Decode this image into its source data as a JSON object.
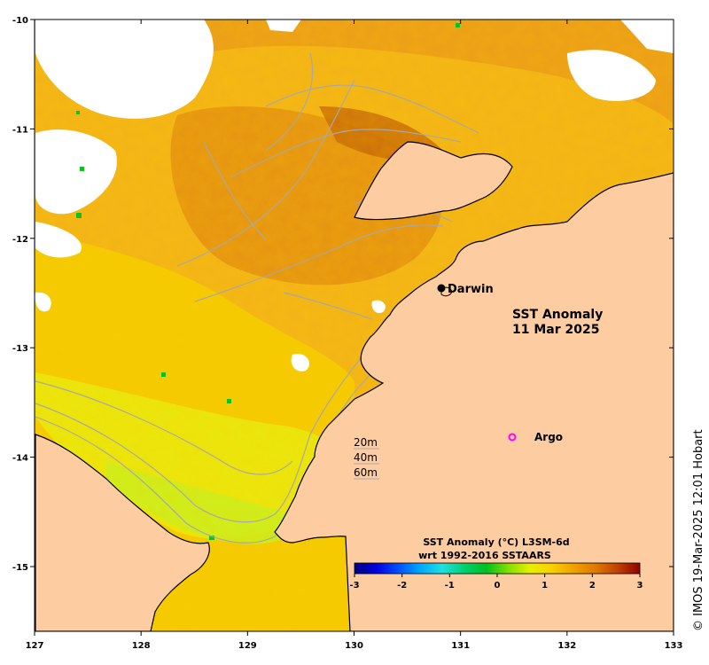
{
  "title": {
    "line1": "SST Anomaly",
    "line2": "11 Mar 2025"
  },
  "places": {
    "darwin": "Darwin",
    "argo": "Argo"
  },
  "depth_legend": [
    "20m",
    "40m",
    "60m"
  ],
  "colorbar": {
    "title_line1": "SST Anomaly (°C) L3SM-6d",
    "title_line2": "wrt 1992-2016 SSTAARS",
    "ticks": [
      "-3",
      "-2",
      "-1",
      "0",
      "1",
      "2",
      "3"
    ],
    "min": -3,
    "max": 3,
    "colors": [
      "#00007f",
      "#0000e0",
      "#0050ff",
      "#00a8ff",
      "#20e0e0",
      "#00d070",
      "#00c020",
      "#80e000",
      "#e8f000",
      "#f8d000",
      "#f0a000",
      "#e07800",
      "#c04000",
      "#900000"
    ]
  },
  "axes": {
    "x_ticks": [
      "127",
      "128",
      "129",
      "130",
      "131",
      "132",
      "133"
    ],
    "y_ticks": [
      "-10",
      "-11",
      "-12",
      "-13",
      "-14",
      "-15"
    ],
    "x_range": [
      127,
      133
    ],
    "y_range": [
      -15.6,
      -10
    ]
  },
  "credit": "© IMOS 19-Mar-2025 12:01 Hobart",
  "colors": {
    "land": "#fdcca0",
    "anomaly_warm": "#e08a10",
    "anomaly_mid": "#f5c800",
    "anomaly_cool": "#c8f020",
    "argo_marker": "#ff00ff"
  }
}
